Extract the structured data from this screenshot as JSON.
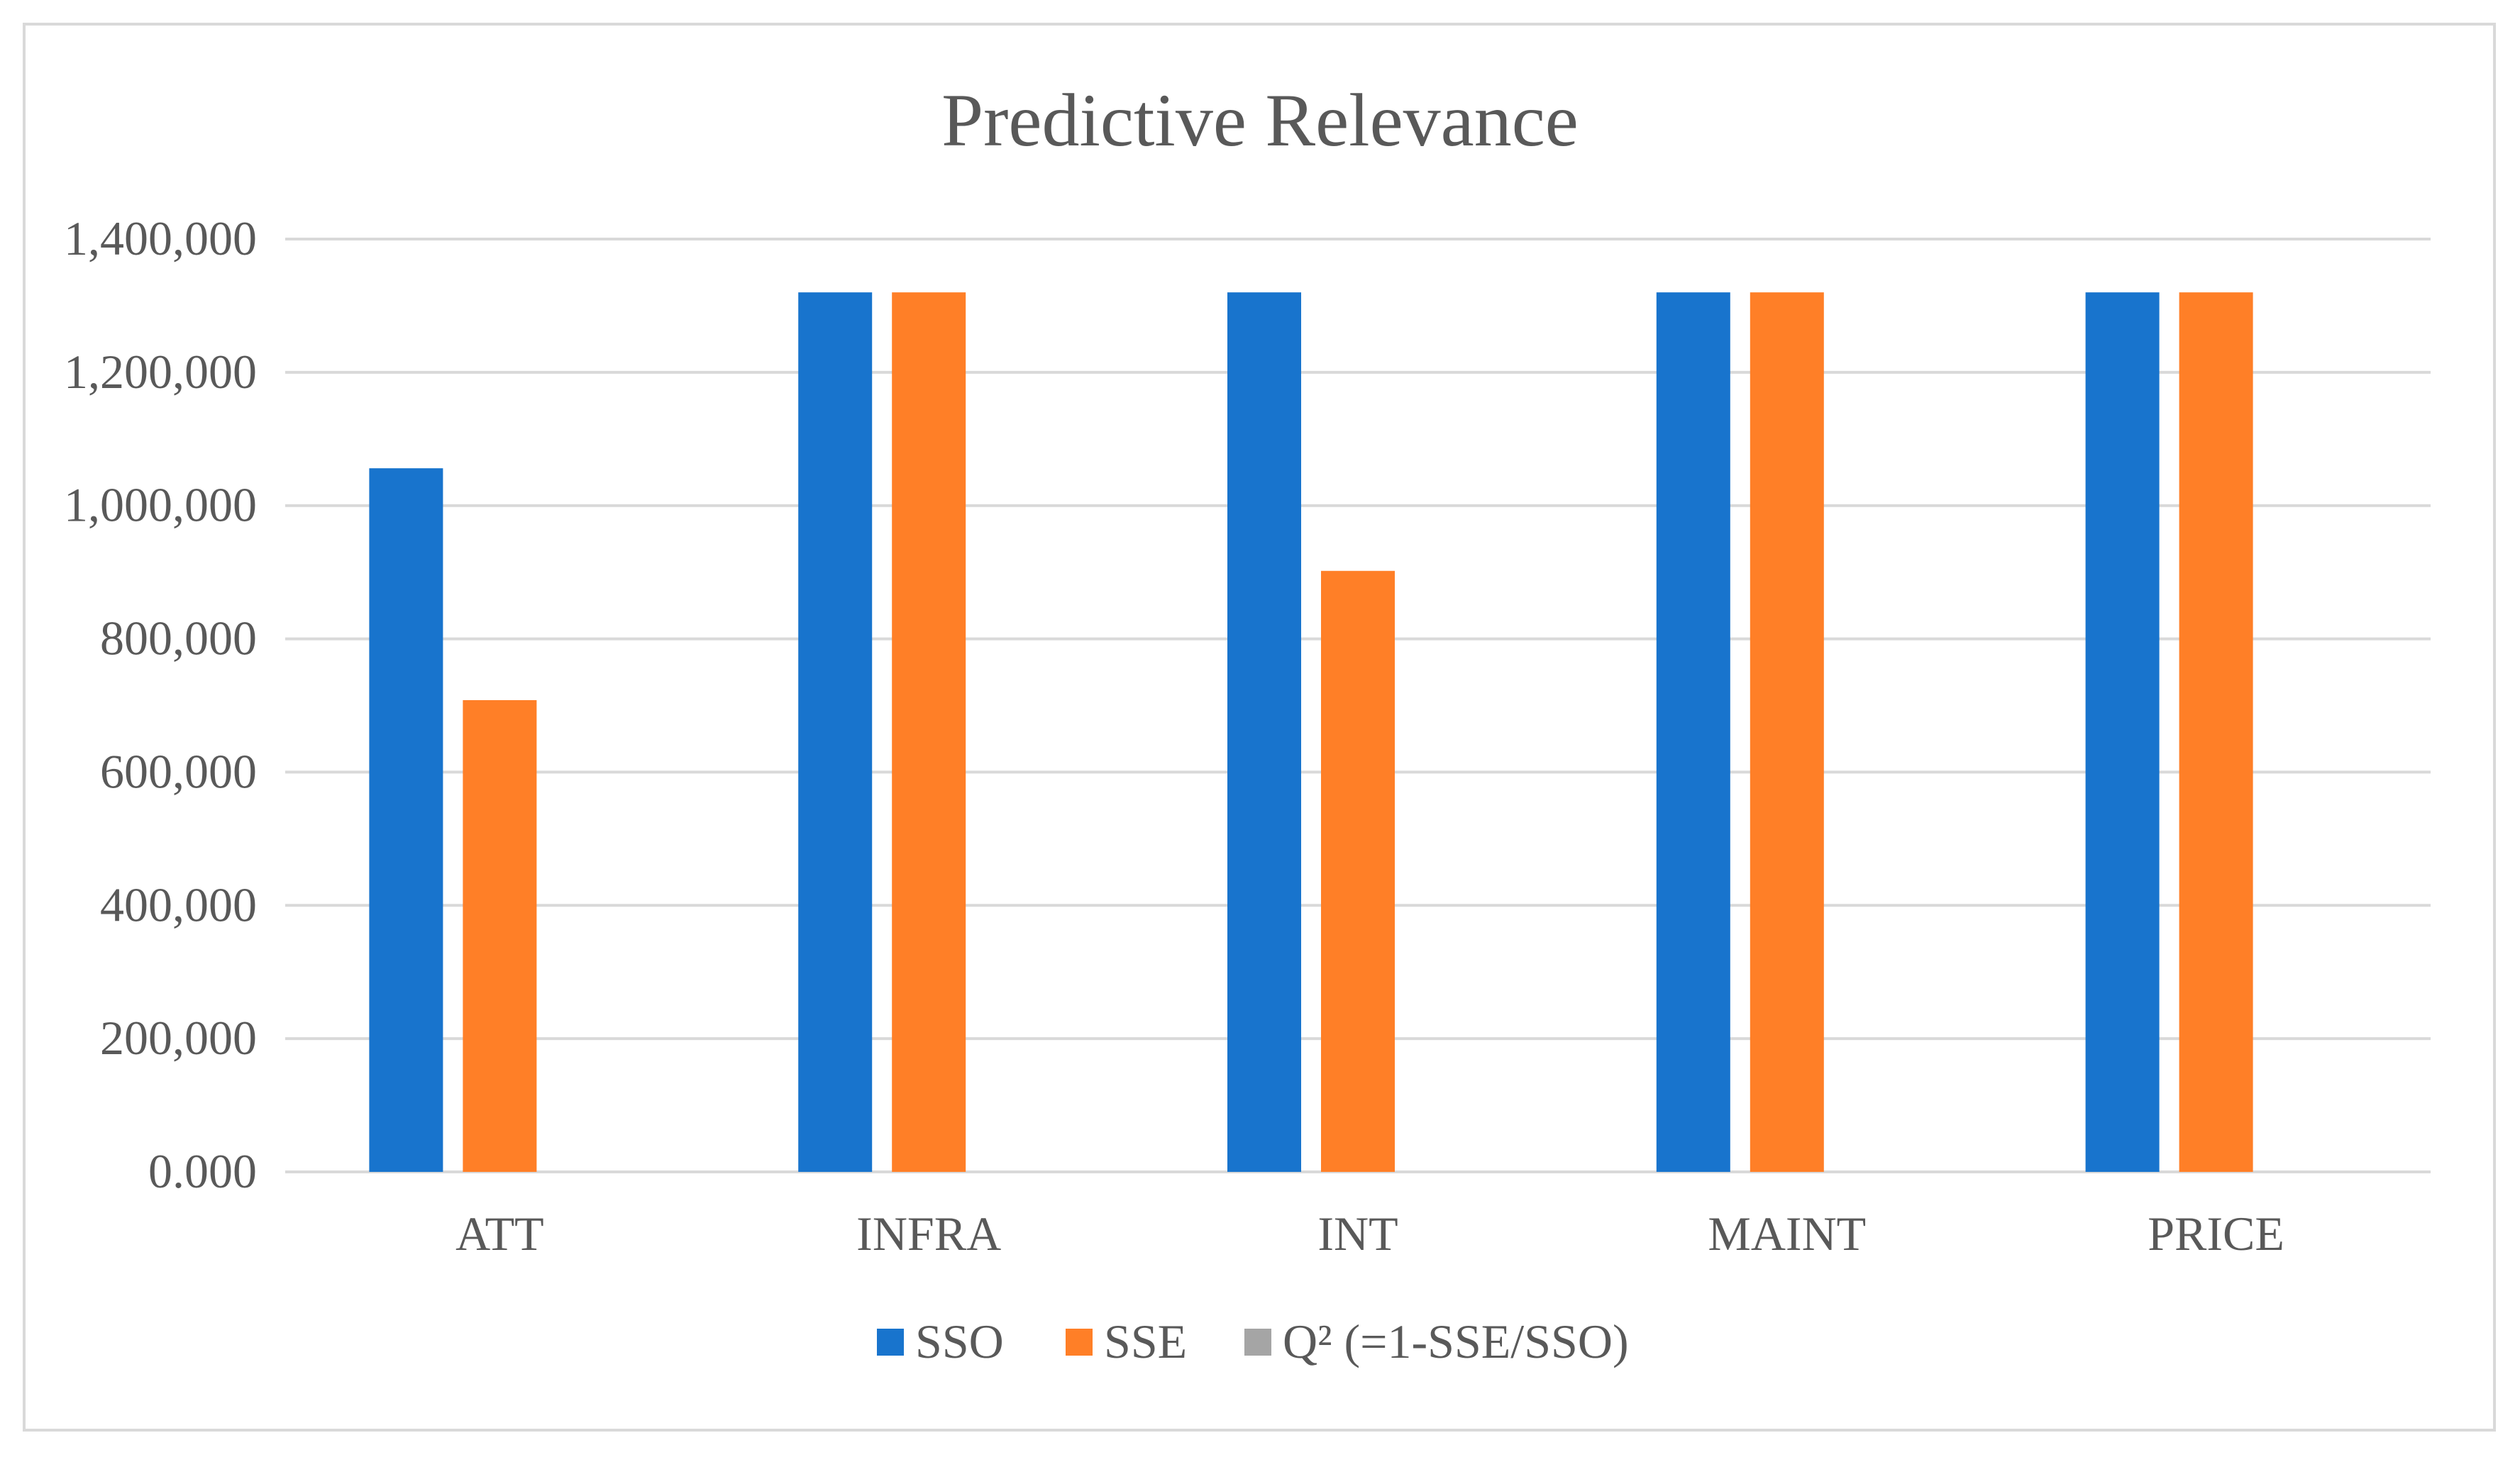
{
  "chart_data": {
    "type": "bar",
    "title": "Predictive Relevance",
    "categories": [
      "ATT",
      "INFRA",
      "INT",
      "MAINT",
      "PRICE"
    ],
    "series": [
      {
        "name": "SSO",
        "color": "#1874cd",
        "values": [
          1056000,
          1320000,
          1320000,
          1320000,
          1320000
        ]
      },
      {
        "name": "SSE",
        "color": "#ff7f27",
        "values": [
          708000,
          1320000,
          902000,
          1320000,
          1320000
        ]
      },
      {
        "name": "Q² (=1-SSE/SSO)",
        "color": "#a5a5a5",
        "values": [
          0.33,
          0.0,
          0.317,
          0.0,
          0.0
        ]
      }
    ],
    "ylim": [
      0,
      1400000
    ],
    "yticks": [
      0,
      200000,
      400000,
      600000,
      800000,
      1000000,
      1200000,
      1400000
    ],
    "ytick_labels": [
      "0.000",
      "200,000",
      "400,000",
      "600,000",
      "800,000",
      "1,000,000",
      "1,200,000",
      "1,400,000"
    ],
    "grid": true,
    "legend": "bottom",
    "xlabel": "",
    "ylabel": ""
  }
}
